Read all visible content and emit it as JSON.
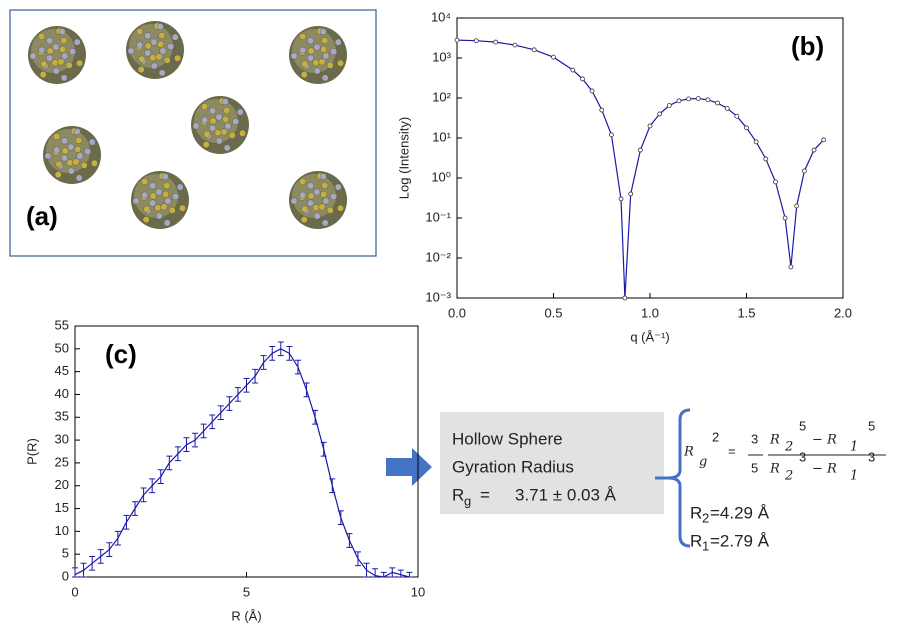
{
  "panel_a": {
    "label": "(a)"
  },
  "chart_data": [
    {
      "type": "line",
      "panel_label": "(b)",
      "x_label": "q (Å⁻¹)",
      "y_label": "Log (Intensity)",
      "log_y": true,
      "color": "#1a1aaa",
      "x": [
        0,
        0.1,
        0.2,
        0.3,
        0.4,
        0.5,
        0.6,
        0.65,
        0.7,
        0.75,
        0.8,
        0.85,
        0.87,
        0.9,
        0.95,
        1.0,
        1.05,
        1.1,
        1.15,
        1.2,
        1.25,
        1.3,
        1.35,
        1.4,
        1.45,
        1.5,
        1.55,
        1.6,
        1.65,
        1.7,
        1.73,
        1.76,
        1.8,
        1.85,
        1.9
      ],
      "values": [
        2800,
        2700,
        2500,
        2100,
        1600,
        1050,
        500,
        300,
        150,
        50,
        12,
        0.3,
        0.001,
        0.4,
        5,
        20,
        40,
        65,
        85,
        95,
        97,
        90,
        75,
        55,
        35,
        18,
        8,
        3,
        0.8,
        0.1,
        0.006,
        0.2,
        1.5,
        5,
        9
      ],
      "xlim": [
        0,
        2.0
      ],
      "xticks": [
        {
          "value": 0,
          "label": "0.0"
        },
        0.5,
        {
          "value": 1,
          "label": "1.0"
        },
        1.5,
        {
          "value": 2,
          "label": "2.0"
        }
      ],
      "ylim": [
        0.001,
        10000
      ],
      "yticks": [
        {
          "value": 0.001,
          "label": "10⁻³"
        },
        {
          "value": 0.01,
          "label": "10⁻²"
        },
        {
          "value": 0.1,
          "label": "10⁻¹"
        },
        {
          "value": 1,
          "label": "10⁰"
        },
        {
          "value": 10,
          "label": "10¹"
        },
        {
          "value": 100,
          "label": "10²"
        },
        {
          "value": 1000,
          "label": "10³"
        },
        {
          "value": 10000,
          "label": "10⁴"
        }
      ]
    },
    {
      "type": "errorbar",
      "panel_label": "(c)",
      "x_label": "R (Å)",
      "y_label": "P(R)",
      "log_y": false,
      "color": "#1a1aaa",
      "x": [
        0,
        0.25,
        0.5,
        0.75,
        1,
        1.25,
        1.5,
        1.75,
        2,
        2.25,
        2.5,
        2.75,
        3,
        3.25,
        3.5,
        3.75,
        4,
        4.25,
        4.5,
        4.75,
        5,
        5.25,
        5.5,
        5.75,
        6,
        6.25,
        6.5,
        6.75,
        7,
        7.25,
        7.5,
        7.75,
        8,
        8.25,
        8.5,
        8.75,
        9,
        9.25,
        9.5,
        9.75
      ],
      "values": [
        0.5,
        1.5,
        3,
        4.5,
        6,
        8.5,
        12,
        15,
        18,
        20,
        22,
        25,
        27,
        29,
        30,
        32,
        34,
        36,
        38,
        40,
        42,
        44,
        47,
        49,
        50,
        49,
        46,
        41,
        35,
        28,
        20,
        13,
        8,
        4,
        1.5,
        0.3,
        0,
        1,
        0.5,
        0
      ],
      "errors": [
        1.5,
        1.5,
        1.5,
        1.5,
        1.5,
        1.5,
        1.5,
        1.5,
        1.5,
        1.5,
        1.5,
        1.5,
        1.5,
        1.5,
        1.5,
        1.5,
        1.5,
        1.5,
        1.5,
        1.5,
        1.5,
        1.5,
        1.5,
        1.5,
        1.5,
        1.5,
        1.5,
        1.5,
        1.5,
        1.5,
        1.5,
        1.5,
        1.5,
        1.5,
        1.5,
        1.5,
        1,
        1,
        1,
        1
      ],
      "xlim": [
        0,
        10
      ],
      "xticks": [
        0,
        5,
        10
      ],
      "ylim": [
        0,
        55
      ],
      "yticks": [
        0,
        5,
        10,
        15,
        20,
        25,
        30,
        35,
        40,
        45,
        50,
        55
      ]
    }
  ],
  "result_box": {
    "line1": "Hollow Sphere",
    "line2": "Gyration Radius",
    "symbol": "R",
    "subscript": "g",
    "equals": "=",
    "value": "3.71 ± 0.03 Å"
  },
  "formula": {
    "parts": [
      "R",
      "g",
      "2",
      "=",
      "3",
      "5",
      "R",
      "2",
      "5",
      "− R",
      "1",
      "5",
      "R",
      "2",
      "3",
      "− R",
      "1",
      "3"
    ]
  },
  "radii": [
    {
      "symbol": "R",
      "subscript": "2",
      "value": "=4.29 Å"
    },
    {
      "symbol": "R",
      "subscript": "1",
      "value": "=2.79 Å"
    }
  ]
}
